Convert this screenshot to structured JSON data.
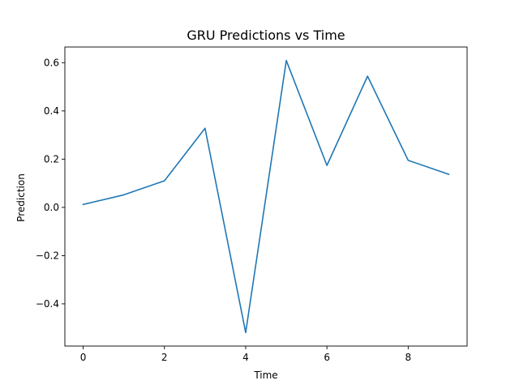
{
  "chart_data": {
    "type": "line",
    "title": "GRU Predictions vs Time",
    "xlabel": "Time",
    "ylabel": "Prediction",
    "x": [
      0,
      1,
      2,
      3,
      4,
      5,
      6,
      7,
      8,
      9
    ],
    "series": [
      {
        "values": [
          0.012,
          0.052,
          0.11,
          0.328,
          -0.519,
          0.609,
          0.174,
          0.544,
          0.195,
          0.137
        ],
        "color": "#1f77b4"
      }
    ],
    "xlim": [
      -0.45,
      9.45
    ],
    "ylim": [
      -0.575,
      0.665
    ],
    "xticks": [
      0,
      2,
      4,
      6,
      8
    ],
    "xtick_labels": [
      "0",
      "2",
      "4",
      "6",
      "8"
    ],
    "yticks": [
      -0.4,
      -0.2,
      0.0,
      0.2,
      0.4,
      0.6
    ],
    "ytick_labels": [
      "−0.4",
      "−0.2",
      "0.0",
      "0.2",
      "0.4",
      "0.6"
    ],
    "grid": false,
    "legend": "none"
  }
}
